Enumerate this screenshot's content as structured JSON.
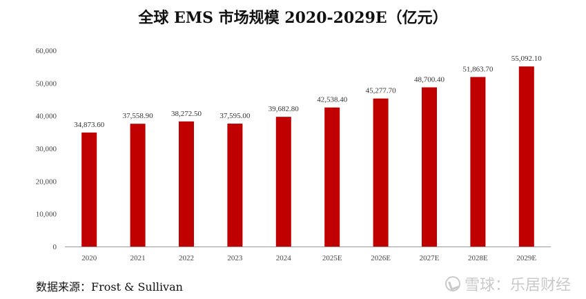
{
  "chart_data": {
    "type": "bar",
    "title": "全球 EMS 市场规模 2020-2029E（亿元）",
    "categories": [
      "2020",
      "2021",
      "2022",
      "2023",
      "2024",
      "2025E",
      "2026E",
      "2027E",
      "2028E",
      "2029E"
    ],
    "values": [
      34873.6,
      37558.9,
      38272.5,
      37595.0,
      39682.8,
      42538.4,
      45277.7,
      48700.4,
      51863.7,
      55092.1
    ],
    "value_labels": [
      "34,873.60",
      "37,558.90",
      "38,272.50",
      "37,595.00",
      "39,682.80",
      "42,538.40",
      "45,277.70",
      "48,700.40",
      "51,863.70",
      "55,092.10"
    ],
    "ylim": [
      0,
      60000
    ],
    "yticks": [
      0,
      10000,
      20000,
      30000,
      40000,
      50000,
      60000
    ],
    "ytick_labels": [
      "0",
      "10,000",
      "20,000",
      "30,000",
      "40,000",
      "50,000",
      "60,000"
    ],
    "xlabel": "",
    "ylabel": "",
    "grid": false,
    "bar_color": "#c00000"
  },
  "source": "数据来源：Frost & Sullivan",
  "watermark": "雪球：乐居财经"
}
